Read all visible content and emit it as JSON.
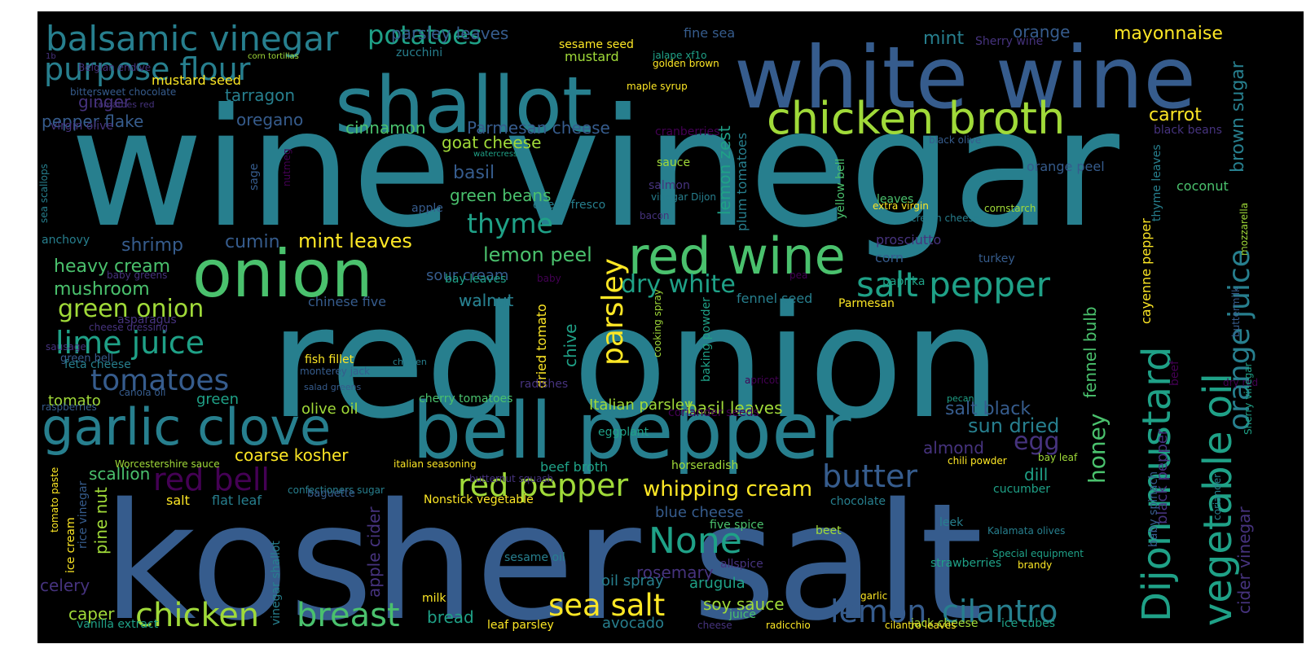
{
  "palette": [
    "#440154",
    "#46337e",
    "#365c8d",
    "#277f8e",
    "#1fa187",
    "#4ac16d",
    "#a0da39",
    "#fde725"
  ],
  "background": "#000000",
  "words": [
    {
      "text": "wine vinegar",
      "c": 3
    },
    {
      "text": "red onion",
      "c": 3
    },
    {
      "text": "kosher salt",
      "c": 2
    },
    {
      "text": "white wine",
      "c": 2
    },
    {
      "text": "shallot",
      "c": 3
    },
    {
      "text": "bell pepper",
      "c": 3
    },
    {
      "text": "onion",
      "c": 5
    },
    {
      "text": "garlic clove",
      "c": 3
    },
    {
      "text": "chicken broth",
      "c": 6
    },
    {
      "text": "red wine",
      "c": 5
    },
    {
      "text": "balsamic vinegar",
      "c": 3
    },
    {
      "text": "purpose flour",
      "c": 3
    },
    {
      "text": "Dijon mustard",
      "c": 4
    },
    {
      "text": "vegetable oil",
      "c": 4
    },
    {
      "text": "salt pepper",
      "c": 4
    },
    {
      "text": "chicken",
      "c": 6
    },
    {
      "text": "breast",
      "c": 5
    },
    {
      "text": "lime juice",
      "c": 4
    },
    {
      "text": "tomatoes",
      "c": 2
    },
    {
      "text": "red pepper",
      "c": 6
    },
    {
      "text": "None",
      "c": 4
    },
    {
      "text": "sea salt",
      "c": 7
    },
    {
      "text": "butter",
      "c": 2
    },
    {
      "text": "lemon",
      "c": 2
    },
    {
      "text": "cilantro",
      "c": 3
    },
    {
      "text": "orange juice",
      "c": 3
    },
    {
      "text": "parsley",
      "c": 7
    },
    {
      "text": "dry white",
      "c": 4
    },
    {
      "text": "thyme",
      "c": 4
    },
    {
      "text": "red bell",
      "c": 0
    },
    {
      "text": "potatoes",
      "c": 4
    },
    {
      "text": "green onion",
      "c": 6
    },
    {
      "text": "honey",
      "c": 5
    },
    {
      "text": "egg",
      "c": 1
    },
    {
      "text": "whipping cream",
      "c": 7
    },
    {
      "text": "sun dried",
      "c": 3
    },
    {
      "text": "salt black",
      "c": 2
    },
    {
      "text": "lemon peel",
      "c": 5
    },
    {
      "text": "mint leaves",
      "c": 7
    },
    {
      "text": "heavy cream",
      "c": 5
    },
    {
      "text": "mushroom",
      "c": 5
    },
    {
      "text": "shrimp",
      "c": 2
    },
    {
      "text": "cumin",
      "c": 2
    },
    {
      "text": "basil",
      "c": 2
    },
    {
      "text": "green beans",
      "c": 5
    },
    {
      "text": "goat cheese",
      "c": 6
    },
    {
      "text": "cinnamon",
      "c": 5
    },
    {
      "text": "Parmesan cheese",
      "c": 2
    },
    {
      "text": "parsley leaves",
      "c": 2
    },
    {
      "text": "mint",
      "c": 3
    },
    {
      "text": "mayonnaise",
      "c": 7
    },
    {
      "text": "carrot",
      "c": 7
    },
    {
      "text": "ginger",
      "c": 1
    },
    {
      "text": "pepper flake",
      "c": 2
    },
    {
      "text": "oregano",
      "c": 2
    },
    {
      "text": "tarragon",
      "c": 3
    },
    {
      "text": "mustard seed",
      "c": 7
    },
    {
      "text": "orange",
      "c": 2
    },
    {
      "text": "mustard",
      "c": 6
    },
    {
      "text": "brown sugar",
      "c": 3
    },
    {
      "text": "lemon zest",
      "c": 4
    },
    {
      "text": "plum tomatoes",
      "c": 3
    },
    {
      "text": "walnut",
      "c": 3
    },
    {
      "text": "sour cream",
      "c": 2
    },
    {
      "text": "bay leaves",
      "c": 4
    },
    {
      "text": "coarse kosher",
      "c": 7
    },
    {
      "text": "scallion",
      "c": 5
    },
    {
      "text": "pine nut",
      "c": 6
    },
    {
      "text": "apple cider",
      "c": 1
    },
    {
      "text": "almond",
      "c": 1
    },
    {
      "text": "dill",
      "c": 4
    },
    {
      "text": "fennel bulb",
      "c": 5
    },
    {
      "text": "black pepper",
      "c": 1
    },
    {
      "text": "cayenne pepper",
      "c": 7
    },
    {
      "text": "cider vinegar",
      "c": 1
    },
    {
      "text": "chive",
      "c": 4
    },
    {
      "text": "basil leaves",
      "c": 6
    },
    {
      "text": "Italian parsley",
      "c": 6
    },
    {
      "text": "olive oil",
      "c": 6
    },
    {
      "text": "rosemary",
      "c": 1
    },
    {
      "text": "oil spray",
      "c": 3
    },
    {
      "text": "arugula",
      "c": 4
    },
    {
      "text": "soy sauce",
      "c": 6
    },
    {
      "text": "avocado",
      "c": 3
    },
    {
      "text": "bread",
      "c": 4
    },
    {
      "text": "caper",
      "c": 6
    },
    {
      "text": "celery",
      "c": 1
    },
    {
      "text": "blue cheese",
      "c": 2
    },
    {
      "text": "tomato",
      "c": 6
    },
    {
      "text": "green",
      "c": 4
    },
    {
      "text": "salt",
      "c": 7
    },
    {
      "text": "flat leaf",
      "c": 3
    },
    {
      "text": "walnut",
      "c": 3
    },
    {
      "text": "corn",
      "c": 2
    },
    {
      "text": "turkey",
      "c": 2
    },
    {
      "text": "paprika",
      "c": 4
    },
    {
      "text": "prosciutto",
      "c": 1
    },
    {
      "text": "chinese five",
      "c": 2
    },
    {
      "text": "fennel seed",
      "c": 3
    },
    {
      "text": "Parmesan",
      "c": 7
    },
    {
      "text": "dried tomato",
      "c": 7
    },
    {
      "text": "radishes",
      "c": 1
    },
    {
      "text": "cherry tomatoes",
      "c": 5
    },
    {
      "text": "beef broth",
      "c": 4
    },
    {
      "text": "horseradish",
      "c": 6
    },
    {
      "text": "eggplant",
      "c": 4
    },
    {
      "text": "cucumber",
      "c": 4
    },
    {
      "text": "chocolate",
      "c": 3
    },
    {
      "text": "Nonstick vegetable",
      "c": 7
    },
    {
      "text": "strawberries",
      "c": 4
    },
    {
      "text": "leek",
      "c": 3
    },
    {
      "text": "beet",
      "c": 6
    },
    {
      "text": "allspice",
      "c": 1
    },
    {
      "text": "sesame oil",
      "c": 3
    },
    {
      "text": "five spice",
      "c": 5
    },
    {
      "text": "juice",
      "c": 5
    },
    {
      "text": "milk",
      "c": 7
    },
    {
      "text": "leaf parsley",
      "c": 7
    },
    {
      "text": "jack cheese",
      "c": 6
    },
    {
      "text": "ice cubes",
      "c": 4
    },
    {
      "text": "vanilla extract",
      "c": 4
    },
    {
      "text": "fine sea",
      "c": 2
    },
    {
      "text": "Sherry wine",
      "c": 1
    },
    {
      "text": "sesame seed",
      "c": 7
    },
    {
      "text": "zucchini",
      "c": 3
    },
    {
      "text": "jalape xf1o",
      "c": 4
    },
    {
      "text": "golden brown",
      "c": 7
    },
    {
      "text": "maple syrup",
      "c": 7
    },
    {
      "text": "Belgian endive",
      "c": 1
    },
    {
      "text": "1b",
      "c": 1
    },
    {
      "text": "corn tortillas",
      "c": 6
    },
    {
      "text": "bittersweet chocolate",
      "c": 2
    },
    {
      "text": "tomatoes red",
      "c": 1
    },
    {
      "text": "virgin olive",
      "c": 1
    },
    {
      "text": "cranberries",
      "c": 0
    },
    {
      "text": "watercress",
      "c": 4
    },
    {
      "text": "black olive",
      "c": 2
    },
    {
      "text": "black beans",
      "c": 1
    },
    {
      "text": "coconut",
      "c": 5
    },
    {
      "text": "orange peel",
      "c": 2
    },
    {
      "text": "cornstarch",
      "c": 6
    },
    {
      "text": "leaves",
      "c": 5
    },
    {
      "text": "extra virgin",
      "c": 7
    },
    {
      "text": "yellow bell",
      "c": 5
    },
    {
      "text": "cream cheese",
      "c": 3
    },
    {
      "text": "thyme leaves",
      "c": 3
    },
    {
      "text": "salmon",
      "c": 1
    },
    {
      "text": "vinegar Dijon",
      "c": 3
    },
    {
      "text": "apple",
      "c": 2
    },
    {
      "text": "queso fresco",
      "c": 3
    },
    {
      "text": "bacon",
      "c": 1
    },
    {
      "text": "sauce",
      "c": 6
    },
    {
      "text": "baby",
      "c": 0
    },
    {
      "text": "pea",
      "c": 0
    },
    {
      "text": "mozzarella",
      "c": 6
    },
    {
      "text": "sage",
      "c": 2
    },
    {
      "text": "nutmeg",
      "c": 0
    },
    {
      "text": "sea scallops",
      "c": 3
    },
    {
      "text": "anchovy",
      "c": 3
    },
    {
      "text": "baby greens",
      "c": 1
    },
    {
      "text": "asparagus",
      "c": 1
    },
    {
      "text": "cheese dressing",
      "c": 1
    },
    {
      "text": "sausage",
      "c": 1
    },
    {
      "text": "green bell",
      "c": 2
    },
    {
      "text": "feta cheese",
      "c": 3
    },
    {
      "text": "fish fillet",
      "c": 7
    },
    {
      "text": "monterey jack",
      "c": 2
    },
    {
      "text": "chicken",
      "c": 3
    },
    {
      "text": "salad greens",
      "c": 2
    },
    {
      "text": "canola oil",
      "c": 2
    },
    {
      "text": "raspberries",
      "c": 2
    },
    {
      "text": "cooking spray",
      "c": 6
    },
    {
      "text": "baking powder",
      "c": 4
    },
    {
      "text": "apricot",
      "c": 0
    },
    {
      "text": "coriander seeds",
      "c": 0
    },
    {
      "text": "pecan",
      "c": 4
    },
    {
      "text": "dry red",
      "c": 0
    },
    {
      "text": "buttermilk",
      "c": 2
    },
    {
      "text": "beef",
      "c": 0
    },
    {
      "text": "coriander",
      "c": 3
    },
    {
      "text": "Sherry vinegar",
      "c": 4
    },
    {
      "text": "Worcestershire sauce",
      "c": 6
    },
    {
      "text": "italian seasoning",
      "c": 7
    },
    {
      "text": "butternut squash",
      "c": 1
    },
    {
      "text": "confectioners sugar",
      "c": 3
    },
    {
      "text": "baguette",
      "c": 2
    },
    {
      "text": "chili powder",
      "c": 7
    },
    {
      "text": "bay leaf",
      "c": 6
    },
    {
      "text": "tomato paste",
      "c": 7
    },
    {
      "text": "ice cream",
      "c": 7
    },
    {
      "text": "rice vinegar",
      "c": 2
    },
    {
      "text": "vinegar shallot",
      "c": 3
    },
    {
      "text": "Kalamata olives",
      "c": 3
    },
    {
      "text": "Special equipment",
      "c": 4
    },
    {
      "text": "brandy",
      "c": 7
    },
    {
      "text": "baby spinach",
      "c": 2
    },
    {
      "text": "garlic",
      "c": 7
    },
    {
      "text": "cheese",
      "c": 1
    },
    {
      "text": "radicchio",
      "c": 7
    },
    {
      "text": "cilantro leaves",
      "c": 7
    },
    {
      "text": "cumin seeds",
      "c": 1
    },
    {
      "text": "fresco cheese",
      "c": 2
    }
  ]
}
